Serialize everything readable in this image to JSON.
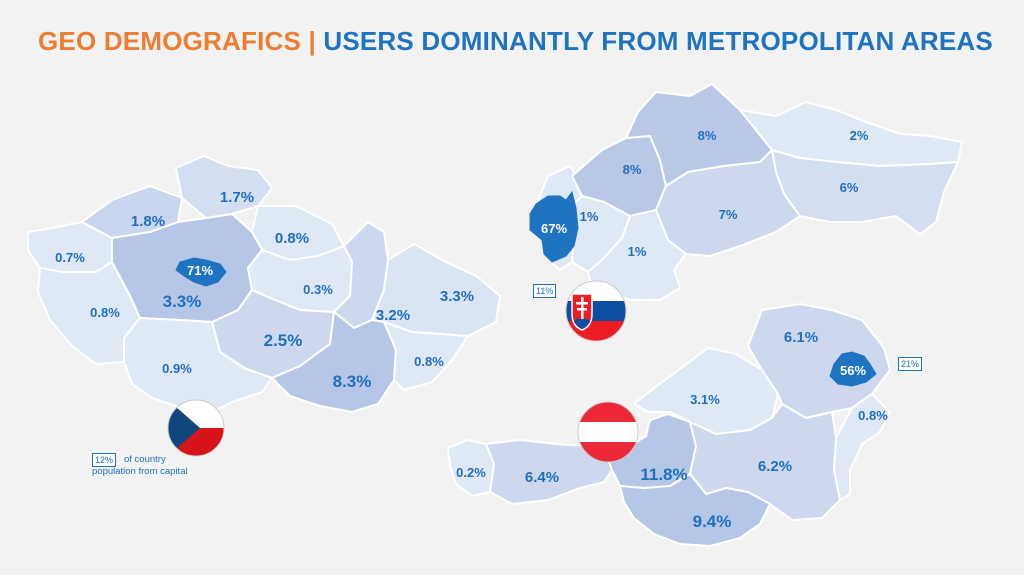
{
  "title": {
    "part1": "GEO DEMOGRAFICS",
    "separator": "|",
    "part2": "USERS DOMINANTLY FROM METROPOLITAN AREAS"
  },
  "czech": {
    "capital_share": "71%",
    "capital_population_share": "12%",
    "capital_note_line1": "of country",
    "capital_note_line2": "population from capital",
    "regions": [
      "1.7%",
      "1.8%",
      "0.8%",
      "0.7%",
      "3.3%",
      "0.3%",
      "3.3%",
      "3.2%",
      "0.8%",
      "2.5%",
      "0.8%",
      "0.9%",
      "8.3%"
    ]
  },
  "slovakia": {
    "capital_share": "67%",
    "capital_population_share": "11%",
    "regions": [
      "8%",
      "2%",
      "8%",
      "6%",
      "1%",
      "7%",
      "1%"
    ]
  },
  "austria": {
    "capital_share": "56%",
    "capital_population_share": "21%",
    "regions": [
      "6.1%",
      "3.1%",
      "0.8%",
      "0.2%",
      "6.4%",
      "11.8%",
      "6.2%",
      "9.4%"
    ]
  },
  "colors": {
    "orange": "#ed7d31",
    "blue": "#1f74c2",
    "capital_fill": "#1f74c2",
    "region_light": "#dfe8f5",
    "region_mid": "#cdd8ee",
    "region_dark": "#b7c6e6"
  },
  "icons": [
    "czech-flag-icon",
    "slovak-flag-icon",
    "austrian-flag-icon"
  ]
}
